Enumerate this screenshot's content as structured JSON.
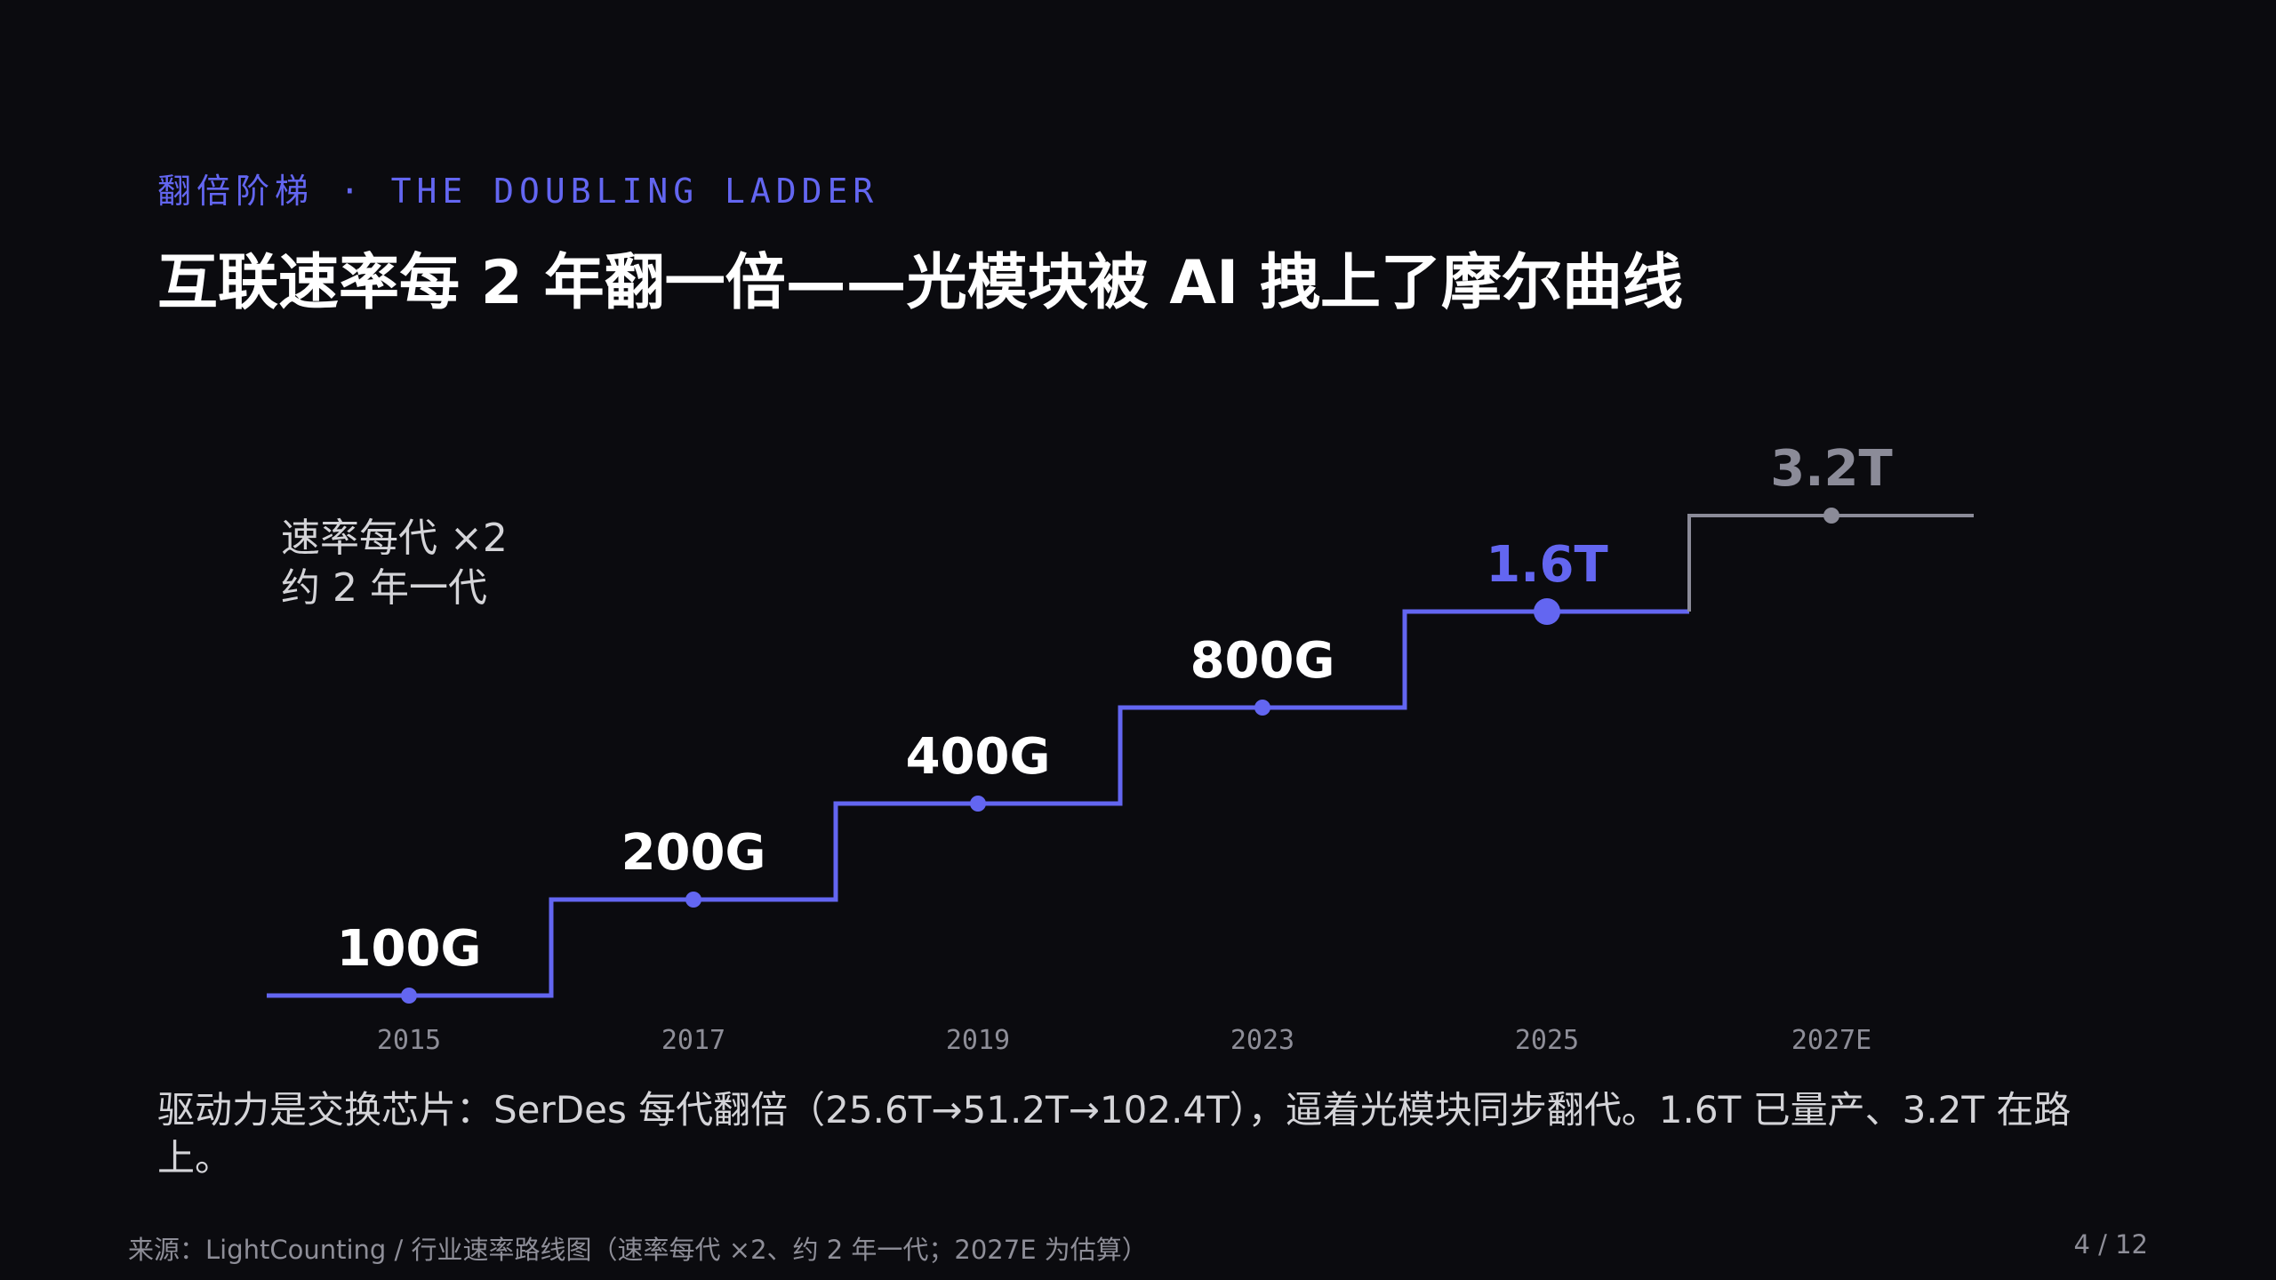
{
  "kicker": "翻倍阶梯 · THE DOUBLING LADDER",
  "title": "互联速率每 2 年翻一倍——光模块被 AI 拽上了摩尔曲线",
  "caption": "驱动力是交换芯片：SerDes 每代翻倍（25.6T→51.2T→102.4T），逼着光模块同步翻代。1.6T 已量产、3.2T 在路上。",
  "footer": {
    "source": "来源：LightCounting / 行业速率路线图（速率每代 ×2、约 2 年一代；2027E 为估算）",
    "page": "4 / 12"
  },
  "colors": {
    "accent": "#6366f1",
    "projected": "#8b8b98",
    "background": "#0b0b0f",
    "text": "#ffffff",
    "muted": "#8e8e98"
  },
  "chart_data": {
    "type": "line",
    "style": "step",
    "categories": [
      "2015",
      "2017",
      "2019",
      "2023",
      "2025",
      "2027E"
    ],
    "values": [
      100,
      200,
      400,
      800,
      1600,
      3200
    ],
    "data_labels": [
      "100G",
      "200G",
      "400G",
      "800G",
      "1.6T",
      "3.2T"
    ],
    "y_scale": "log2",
    "highlight_index": 4,
    "projected_from_index": 5,
    "annotation": [
      "速率每代 ×2",
      "约 2 年一代"
    ],
    "grid": false,
    "legend": "none"
  }
}
